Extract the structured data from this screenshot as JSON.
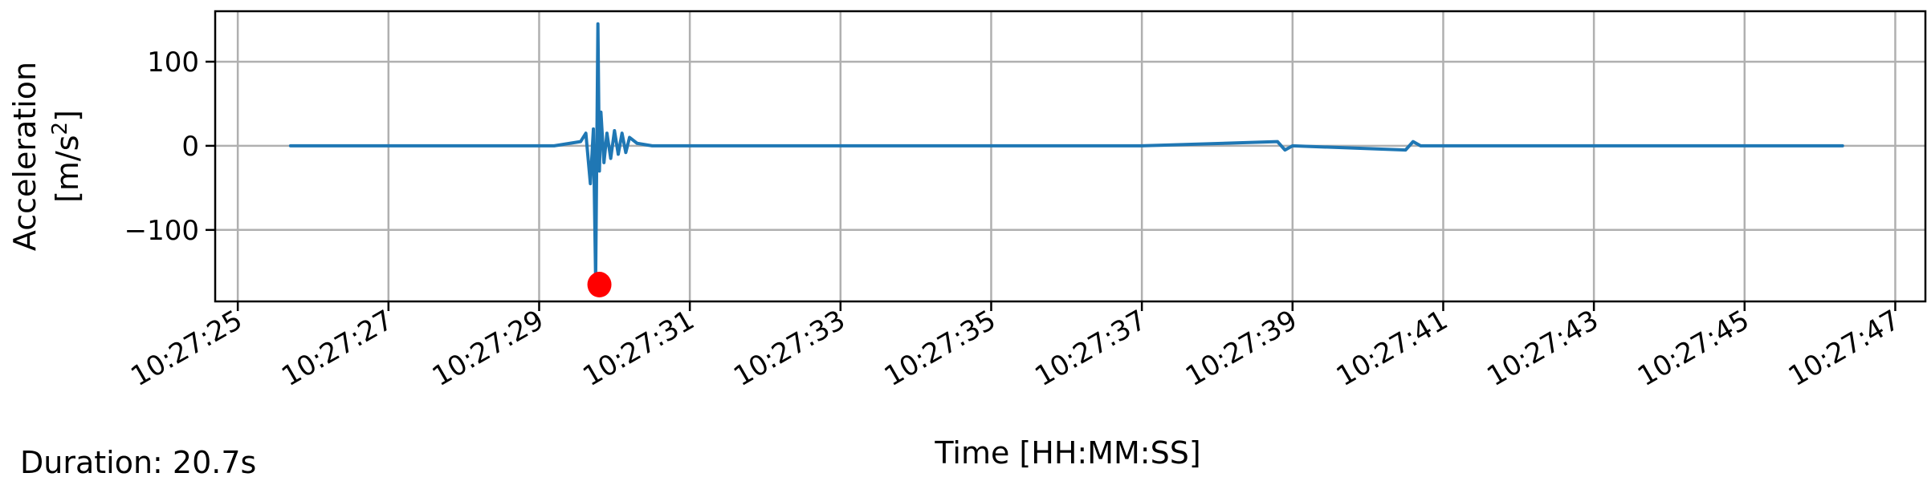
{
  "chart_data": {
    "type": "line",
    "xlabel": "Time [HH:MM:SS]",
    "ylabel_line1": "Acceleration",
    "ylabel_unit_base": "[m/s",
    "ylabel_unit_sup": "2",
    "ylabel_unit_end": "]",
    "xlim": [
      "10:27:24.7",
      "10:27:47.4"
    ],
    "ylim": [
      -185,
      160
    ],
    "x_ticks": [
      "10:27:25",
      "10:27:27",
      "10:27:29",
      "10:27:31",
      "10:27:33",
      "10:27:35",
      "10:27:37",
      "10:27:39",
      "10:27:41",
      "10:27:43",
      "10:27:45",
      "10:27:47"
    ],
    "y_ticks": [
      100,
      0,
      -100
    ],
    "y_tick_labels": [
      "100",
      "0",
      "−100"
    ],
    "grid": true,
    "series": [
      {
        "color": "#1f77b4",
        "x": [
          "10:27:25.7",
          "10:27:28.0",
          "10:27:29.2",
          "10:27:29.55",
          "10:27:29.62",
          "10:27:29.68",
          "10:27:29.72",
          "10:27:29.75",
          "10:27:29.78",
          "10:27:29.80",
          "10:27:29.82",
          "10:27:29.86",
          "10:27:29.90",
          "10:27:29.95",
          "10:27:30.0",
          "10:27:30.05",
          "10:27:30.1",
          "10:27:30.15",
          "10:27:30.2",
          "10:27:30.3",
          "10:27:30.5",
          "10:27:32.7",
          "10:27:35.0",
          "10:27:37.0",
          "10:27:38.8",
          "10:27:38.9",
          "10:27:39.0",
          "10:27:40.5",
          "10:27:40.6",
          "10:27:40.7",
          "10:27:43.0",
          "10:27:46.3"
        ],
        "y": [
          0,
          0,
          0,
          5,
          15,
          -45,
          20,
          -160,
          145,
          -30,
          40,
          -20,
          15,
          -15,
          18,
          -10,
          15,
          -8,
          10,
          3,
          0,
          0,
          0,
          0,
          5,
          -5,
          0,
          -5,
          5,
          0,
          0,
          0
        ]
      }
    ],
    "markers": [
      {
        "x": "10:27:29.80",
        "y": -165,
        "color": "#ff0000"
      }
    ]
  },
  "footer": {
    "duration_text": "Duration: 20.7s"
  }
}
